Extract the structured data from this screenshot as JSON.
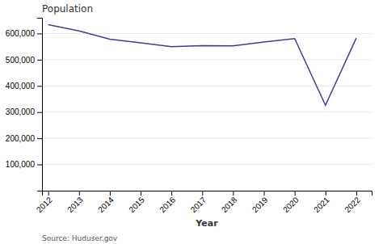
{
  "chart_data": {
    "type": "line",
    "title": "Population",
    "xlabel": "Year",
    "x": [
      2012,
      2013,
      2014,
      2015,
      2016,
      2017,
      2018,
      2019,
      2020,
      2021,
      2022
    ],
    "values": [
      633782,
      610042,
      578424,
      564708,
      549928,
      553742,
      552830,
      567715,
      580466,
      326126,
      582462
    ],
    "color": "#3d3d9e",
    "xlim": [
      2011.8,
      2022.5
    ],
    "xticks": [
      2012,
      2013,
      2014,
      2015,
      2016,
      2017,
      2018,
      2019,
      2020,
      2021,
      2022
    ],
    "ylim": [
      0,
      660000
    ],
    "yticks": [
      {
        "value": 100000,
        "label": "100,000"
      },
      {
        "value": 200000,
        "label": "200,000"
      },
      {
        "value": 300000,
        "label": "300,000"
      },
      {
        "value": 400000,
        "label": "400,000"
      },
      {
        "value": 500000,
        "label": "500,000"
      },
      {
        "value": 600000,
        "label": "600,000"
      }
    ],
    "grid": "y",
    "annotations": [
      "Source: Huduser.gov"
    ]
  }
}
